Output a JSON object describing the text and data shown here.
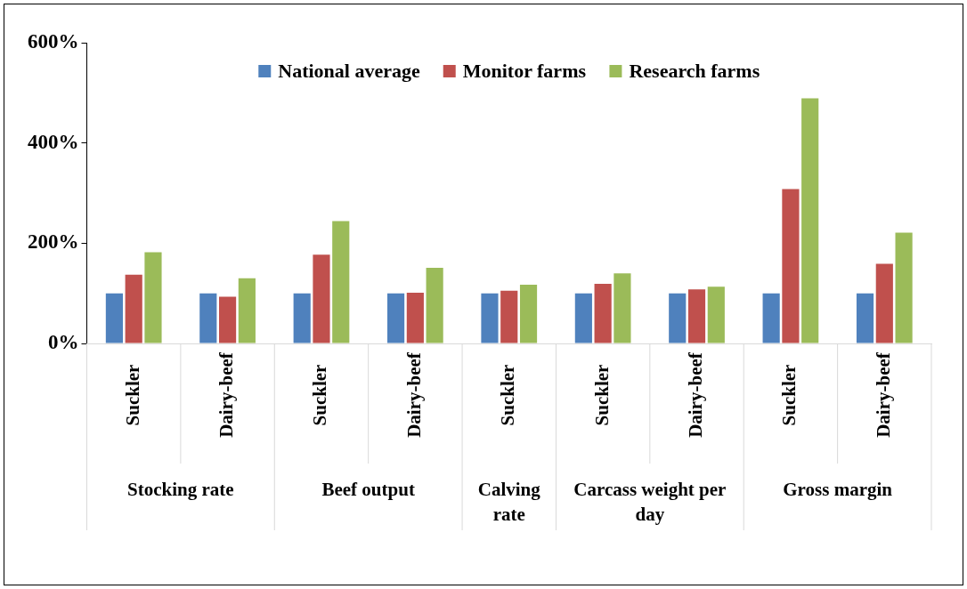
{
  "chart_data": {
    "type": "bar",
    "categories": [
      "Suckler",
      "Dairy-beef",
      "Suckler",
      "Dairy-beef",
      "Suckler",
      "Suckler",
      "Dairy-beef",
      "Suckler",
      "Dairy-beef"
    ],
    "annotations": [
      "Stocking rate",
      "Beef output",
      "Calving rate",
      "Carcass weight per day",
      "Gross margin"
    ],
    "series": [
      {
        "name": "National average",
        "color": "#4f81bd",
        "values": [
          100,
          100,
          100,
          100,
          100,
          100,
          100,
          100,
          100
        ]
      },
      {
        "name": "Monitor farms",
        "color": "#c0504d",
        "values": [
          137,
          93,
          177,
          101,
          105,
          119,
          108,
          308,
          159
        ]
      },
      {
        "name": "Research farms",
        "color": "#9bbb59",
        "values": [
          182,
          130,
          244,
          151,
          117,
          140,
          113,
          489,
          221
        ]
      }
    ],
    "ylim": [
      0,
      600
    ],
    "yticks": [
      {
        "value": 0,
        "label": "0%"
      },
      {
        "value": 200,
        "label": "200%"
      },
      {
        "value": 400,
        "label": "400%"
      },
      {
        "value": 600,
        "label": "600%"
      }
    ],
    "grid": false,
    "legend": "top"
  }
}
